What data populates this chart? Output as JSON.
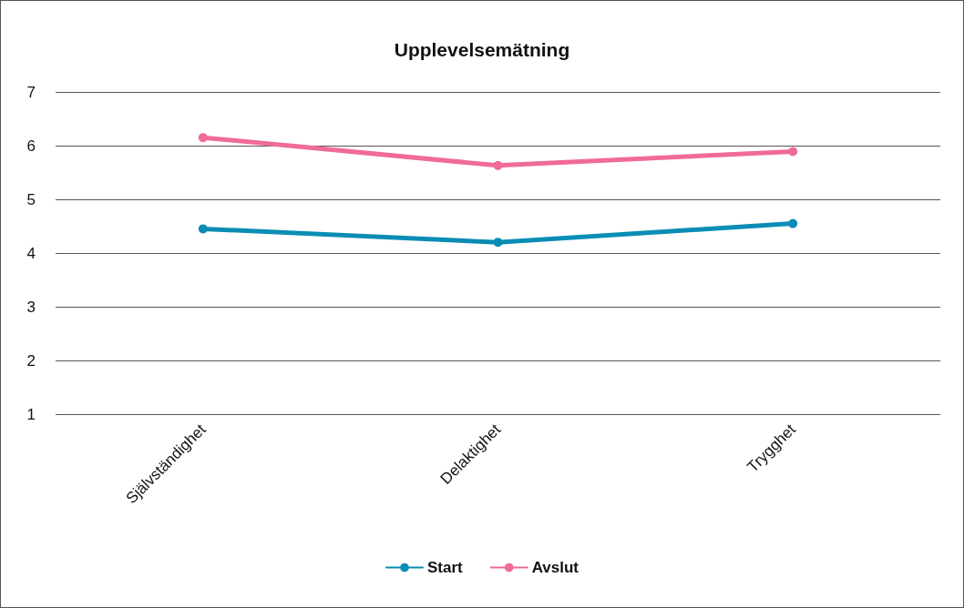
{
  "chart_data": {
    "type": "line",
    "title": "Upplevelsemätning",
    "categories": [
      "Självständighet",
      "Delaktighet",
      "Trygghet"
    ],
    "series": [
      {
        "name": "Start",
        "color": "#0a8db5",
        "values": [
          4.45,
          4.2,
          4.55
        ]
      },
      {
        "name": "Avslut",
        "color": "#f06b97",
        "values": [
          6.15,
          5.63,
          5.89
        ]
      }
    ],
    "ylim": [
      1,
      7
    ],
    "yticks": [
      1,
      2,
      3,
      4,
      5,
      6,
      7
    ],
    "grid": "y",
    "legend": "bottom",
    "marker": "circle",
    "line_style": "solid"
  }
}
